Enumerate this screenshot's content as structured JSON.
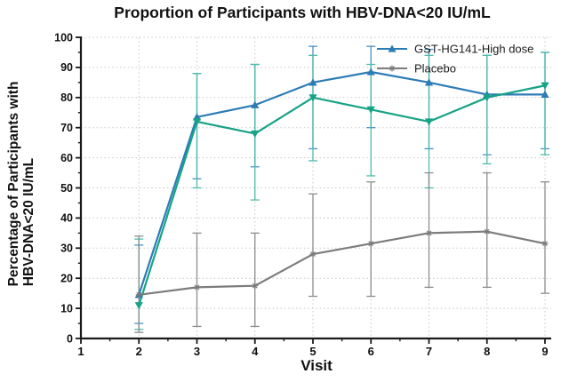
{
  "figure": {
    "title": "Proportion of Participants with HBV-DNA<20 IU/mL",
    "x_axis_label": "Visit",
    "y_axis_label_line1": "Percentage of Participants with",
    "y_axis_label_line2": "HBV-DNA<20 IU/mL"
  },
  "chart_data": {
    "type": "line",
    "title": "Proportion of Participants with HBV-DNA<20 IU/mL",
    "xlabel": "Visit",
    "ylabel": "Percentage of Participants with HBV-DNA<20 IU/mL",
    "xlim": [
      1,
      9
    ],
    "ylim": [
      0,
      100
    ],
    "x_ticks": [
      1,
      2,
      3,
      4,
      5,
      6,
      7,
      8,
      9
    ],
    "y_ticks": [
      0,
      10,
      20,
      30,
      40,
      50,
      60,
      70,
      80,
      90,
      100
    ],
    "grid": "dotted horizontal and vertical gridlines at every major tick",
    "legend_position": "top-right inside plot",
    "x": [
      2,
      3,
      4,
      5,
      6,
      7,
      8,
      9
    ],
    "series": [
      {
        "name": "GST-HG141-High dose",
        "in_legend": true,
        "marker": "triangle-up",
        "color": "#2d7cb5",
        "err_color": "#4a93c6",
        "values": [
          14.5,
          73.5,
          77.5,
          85,
          88.5,
          85,
          81,
          81
        ],
        "ci_low": [
          5,
          53,
          57,
          63,
          70,
          63,
          61,
          63
        ],
        "ci_high": [
          31,
          88,
          91,
          97,
          97,
          96,
          94,
          95
        ]
      },
      {
        "name": "",
        "in_legend": false,
        "marker": "triangle-down",
        "color": "#17a386",
        "err_color": "#4fbcab",
        "values": [
          11,
          72,
          68,
          80,
          76,
          72,
          80,
          84
        ],
        "ci_low": [
          3,
          50,
          46,
          59,
          54,
          50,
          58,
          61
        ],
        "ci_high": [
          33,
          88,
          91,
          94,
          91,
          94,
          94,
          95
        ]
      },
      {
        "name": "Placebo",
        "in_legend": true,
        "marker": "star",
        "color": "#7c7c7c",
        "err_color": "#8d8d8d",
        "values": [
          14.5,
          17,
          17.5,
          28,
          31.5,
          35,
          35.5,
          31.5
        ],
        "ci_low": [
          2,
          4,
          4,
          14,
          14,
          17,
          17,
          15
        ],
        "ci_high": [
          34,
          35,
          35,
          48,
          52,
          55,
          55,
          52
        ]
      }
    ],
    "legend_entries": [
      {
        "label": "GST-HG141-High dose",
        "series_index": 0
      },
      {
        "label": "Placebo",
        "series_index": 2
      }
    ]
  },
  "style_colors": {
    "grid": "#c8c8c8",
    "axis": "#1a1a1a",
    "text": "#111111"
  }
}
